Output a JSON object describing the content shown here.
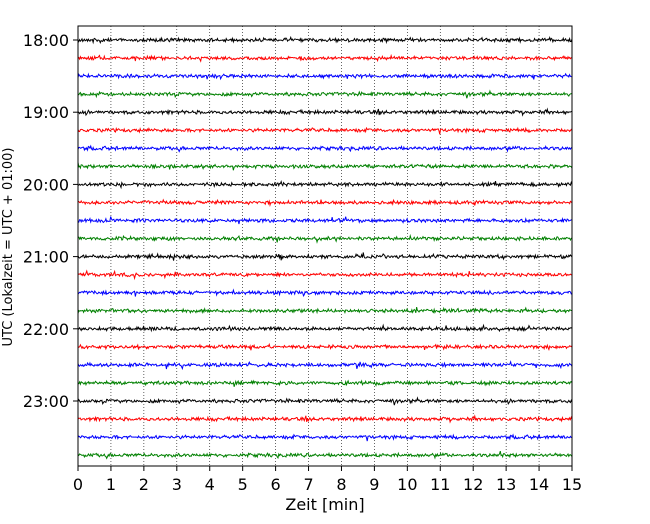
{
  "chart_data": {
    "type": "line",
    "title": "",
    "xlabel": "Zeit  [min]",
    "ylabel": "UTC (Lokalzeit = UTC + 01:00)",
    "xlim": [
      0,
      15
    ],
    "x_ticks": [
      "0",
      "1",
      "2",
      "3",
      "4",
      "5",
      "6",
      "7",
      "8",
      "9",
      "10",
      "11",
      "12",
      "13",
      "14",
      "15"
    ],
    "y_tick_labels": [
      "18:00",
      "19:00",
      "20:00",
      "21:00",
      "22:00",
      "23:00"
    ],
    "grid": "vertical dotted",
    "traces_per_hour": 4,
    "trace_minutes": 15,
    "trace_start_times": [
      "18:00",
      "18:15",
      "18:30",
      "18:45",
      "19:00",
      "19:15",
      "19:30",
      "19:45",
      "20:00",
      "20:15",
      "20:30",
      "20:45",
      "21:00",
      "21:15",
      "21:30",
      "21:45",
      "22:00",
      "22:15",
      "22:30",
      "22:45",
      "23:00",
      "23:15",
      "23:30",
      "23:45"
    ],
    "colors": [
      "#000000",
      "#ff0000",
      "#0000ff",
      "#008000"
    ]
  }
}
